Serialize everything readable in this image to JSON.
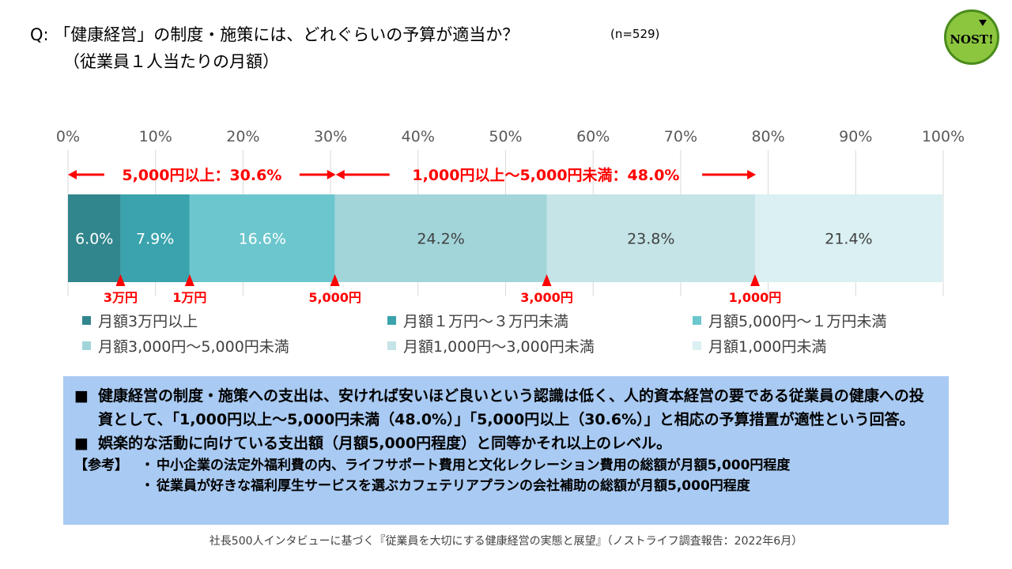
{
  "title": {
    "question": "Q: 「健康経営」の制度・施策には、どれぐらいの予算が適当か？",
    "sample": "(n=529)",
    "subtitle": "（従業員１人当たりの月額）"
  },
  "logo": {
    "text": "NOST!",
    "color": "#8cc63f"
  },
  "chart_data": {
    "type": "bar",
    "orientation": "horizontal",
    "stacked": true,
    "percent_axis": {
      "ticks": [
        "0%",
        "10%",
        "20%",
        "30%",
        "40%",
        "50%",
        "60%",
        "70%",
        "80%",
        "90%",
        "100%"
      ],
      "range": [
        0,
        100
      ],
      "position": "top"
    },
    "grid": true,
    "series": [
      {
        "name": "月額3万円以上",
        "value": 6.0,
        "label": "6.0%",
        "color": "#31858c",
        "label_color": "#ffffff"
      },
      {
        "name": "月額１万円～３万円未満",
        "value": 7.9,
        "label": "7.9%",
        "color": "#3aa3ad",
        "label_color": "#ffffff"
      },
      {
        "name": "月額5,000円～１万円未満",
        "value": 16.6,
        "label": "16.6%",
        "color": "#6cc6cd",
        "label_color": "#ffffff"
      },
      {
        "name": "月額3,000円～5,000円未満",
        "value": 24.2,
        "label": "24.2%",
        "color": "#a1d5da",
        "label_color": "#404040"
      },
      {
        "name": "月額1,000円～3,000円未満",
        "value": 23.8,
        "label": "23.8%",
        "color": "#c4e4e7",
        "label_color": "#404040"
      },
      {
        "name": "月額1,000円未満",
        "value": 21.4,
        "label": "21.4%",
        "color": "#daf0f2",
        "label_color": "#404040"
      }
    ],
    "ranges": [
      {
        "label": "5,000円以上：30.6%",
        "from": 0,
        "to": 30.6
      },
      {
        "label": "1,000円以上～5,000円未満：48.0%",
        "from": 30.6,
        "to": 78.6
      }
    ],
    "markers": [
      {
        "label": "3万円",
        "at": 6.0
      },
      {
        "label": "1万円",
        "at": 13.9
      },
      {
        "label": "5,000円",
        "at": 30.5
      },
      {
        "label": "3,000円",
        "at": 54.7
      },
      {
        "label": "1,000円",
        "at": 78.5
      }
    ],
    "annotation_color": "#ff0000",
    "legend_position": "bottom"
  },
  "notes": {
    "bullet": "■",
    "items": [
      "健康経営の制度・施策への支出は、安ければ安いほど良いという認識は低く、人的資本経営の要である従業員の健康への投資として、「1,000円以上～5,000円未満（48.0%）」「5,000円以上（30.6%）」と相応の予算措置が適性という回答。",
      "娯楽的な活動に向けている支出額（月額5,000円程度）と同等かそれ以上のレベル。"
    ],
    "ref_label": "【参考】",
    "ref_bullet": "・",
    "refs": [
      "中小企業の法定外福利費の内、ライフサポート費用と文化レクレーション費用の総額が月額5,000円程度",
      "従業員が好きな福利厚生サービスを選ぶカフェテリアプランの会社補助の総額が月額5,000円程度"
    ]
  },
  "footer": "社長500人インタビューに基づく『従業員を大切にする健康経営の実態と展望』（ノストライフ調査報告：2022年6月）"
}
